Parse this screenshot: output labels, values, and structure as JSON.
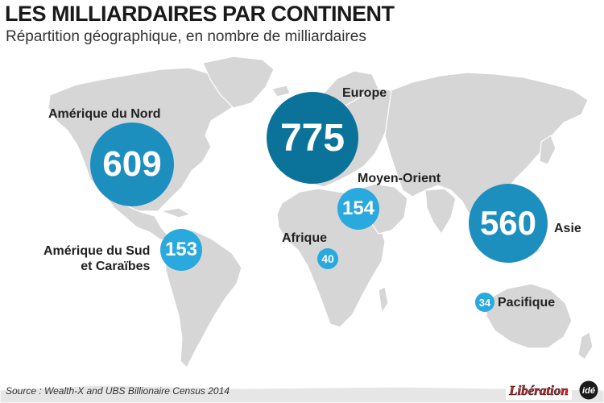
{
  "title_light": "LES MILLIARDAIRES",
  "title_bold": "PAR CONTINENT",
  "subtitle": "Répartition géographique, en nombre de milliardaires",
  "colors": {
    "land": "#d6d6d6",
    "bubble_dark": "#0b7399",
    "bubble_mid": "#1c8fbf",
    "bubble_light": "#29a9de",
    "logo_red": "#d8232a"
  },
  "regions": [
    {
      "name": "Amérique du Nord",
      "value": 609,
      "color": "#1c8fbf"
    },
    {
      "name": "Europe",
      "value": 775,
      "color": "#0b7399"
    },
    {
      "name": "Moyen-Orient",
      "value": 154,
      "color": "#29a9de"
    },
    {
      "name": "Asie",
      "value": 560,
      "color": "#1c8fbf"
    },
    {
      "name_line1": "Amérique du Sud",
      "name_line2": "et Caraïbes",
      "value": 153,
      "color": "#29a9de"
    },
    {
      "name": "Afrique",
      "value": 40,
      "color": "#29a9de"
    },
    {
      "name": "Pacifique",
      "value": 34,
      "color": "#29a9de"
    }
  ],
  "source": "Source : Wealth-X and UBS Billionaire Census 2014",
  "logos": {
    "liberation": "Libération",
    "ide": "idé"
  }
}
